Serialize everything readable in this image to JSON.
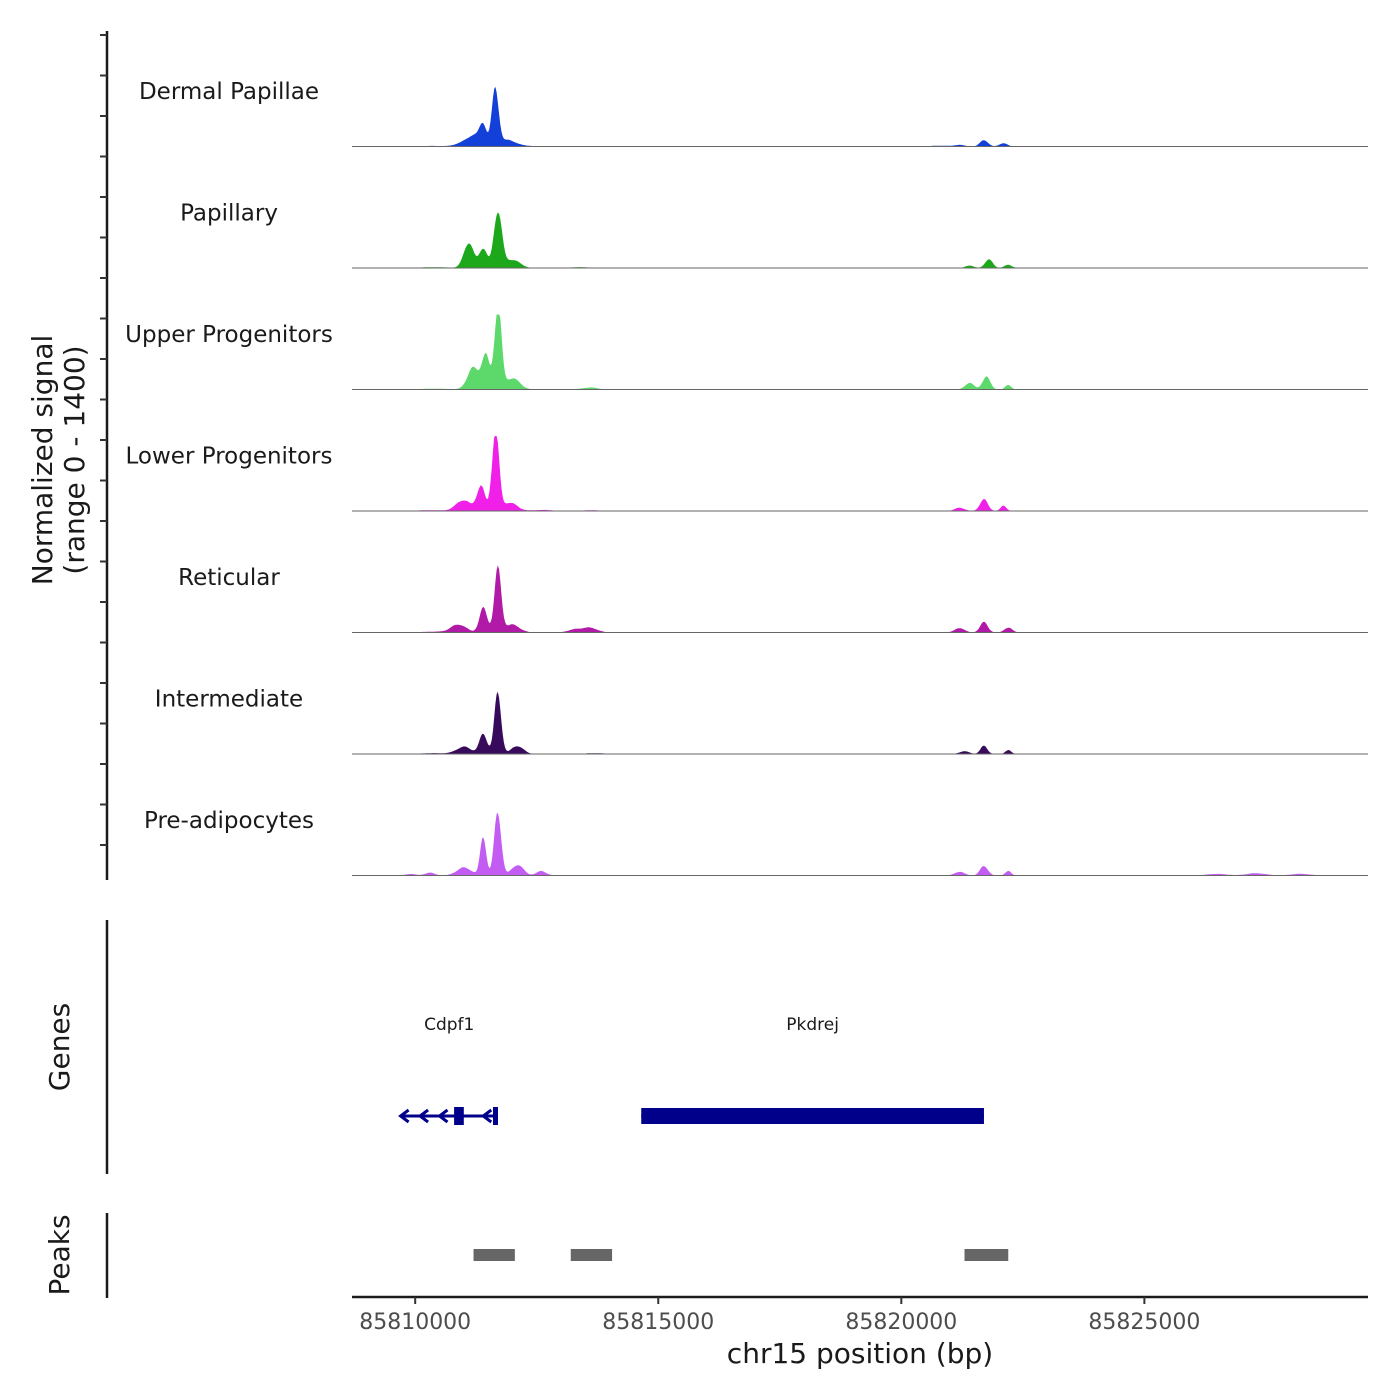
{
  "chart_data": {
    "type": "area",
    "title": "",
    "ylabel_line1": "Normalized signal",
    "ylabel_line2": "(range 0 - 1400)",
    "ylim": [
      0,
      1400
    ],
    "xlabel": "chr15 position (bp)",
    "xlim": [
      85808700,
      85829600
    ],
    "xticks": [
      85810000,
      85815000,
      85820000,
      85825000
    ],
    "xtick_labels": [
      "85810000",
      "85815000",
      "85820000",
      "85825000"
    ],
    "tracks": [
      {
        "name": "Dermal Papillae",
        "color": "#1240d8",
        "peaks": [
          [
            85810400,
            10,
            300
          ],
          [
            85810900,
            40,
            120
          ],
          [
            85811200,
            200,
            150
          ],
          [
            85811400,
            350,
            70
          ],
          [
            85811650,
            1100,
            70
          ],
          [
            85811900,
            120,
            150
          ],
          [
            85812200,
            15,
            200
          ],
          [
            85813500,
            8,
            200
          ],
          [
            85820800,
            15,
            200
          ],
          [
            85821200,
            30,
            100
          ],
          [
            85821700,
            120,
            80
          ],
          [
            85822100,
            60,
            80
          ],
          [
            85823300,
            8,
            200
          ]
        ]
      },
      {
        "name": "Papillary",
        "color": "#1ca81a",
        "peaks": [
          [
            85810400,
            15,
            300
          ],
          [
            85811100,
            450,
            100
          ],
          [
            85811400,
            380,
            80
          ],
          [
            85811700,
            1150,
            80
          ],
          [
            85812000,
            150,
            150
          ],
          [
            85813400,
            15,
            200
          ],
          [
            85821400,
            50,
            80
          ],
          [
            85821800,
            150,
            80
          ],
          [
            85822200,
            60,
            80
          ],
          [
            85827000,
            8,
            200
          ]
        ]
      },
      {
        "name": "Upper Progenitors",
        "color": "#5cd96a",
        "peaks": [
          [
            85810400,
            15,
            300
          ],
          [
            85811200,
            400,
            120
          ],
          [
            85811450,
            650,
            80
          ],
          [
            85811700,
            1600,
            70
          ],
          [
            85812000,
            200,
            150
          ],
          [
            85813600,
            40,
            150
          ],
          [
            85821400,
            120,
            90
          ],
          [
            85821750,
            230,
            80
          ],
          [
            85822200,
            90,
            60
          ]
        ]
      },
      {
        "name": "Lower Progenitors",
        "color": "#f020e8",
        "peaks": [
          [
            85810300,
            15,
            300
          ],
          [
            85811000,
            200,
            150
          ],
          [
            85811350,
            500,
            80
          ],
          [
            85811650,
            1500,
            70
          ],
          [
            85811950,
            150,
            150
          ],
          [
            85812600,
            20,
            200
          ],
          [
            85813600,
            15,
            200
          ],
          [
            85821200,
            60,
            100
          ],
          [
            85821700,
            220,
            80
          ],
          [
            85822100,
            100,
            60
          ],
          [
            85825000,
            5,
            300
          ]
        ]
      },
      {
        "name": "Reticular",
        "color": "#b01aa6",
        "peaks": [
          [
            85810400,
            15,
            300
          ],
          [
            85810900,
            150,
            150
          ],
          [
            85811400,
            450,
            80
          ],
          [
            85811700,
            1100,
            70
          ],
          [
            85812000,
            150,
            150
          ],
          [
            85813300,
            60,
            150
          ],
          [
            85813600,
            80,
            150
          ],
          [
            85821200,
            80,
            100
          ],
          [
            85821700,
            200,
            80
          ],
          [
            85822200,
            90,
            80
          ]
        ]
      },
      {
        "name": "Intermediate",
        "color": "#380a5c",
        "peaks": [
          [
            85810400,
            15,
            300
          ],
          [
            85811000,
            140,
            150
          ],
          [
            85811400,
            350,
            80
          ],
          [
            85811700,
            1100,
            70
          ],
          [
            85812100,
            160,
            120
          ],
          [
            85813700,
            15,
            200
          ],
          [
            85821300,
            50,
            100
          ],
          [
            85821700,
            160,
            70
          ],
          [
            85822200,
            70,
            60
          ]
        ]
      },
      {
        "name": "Pre-adipocytes",
        "color": "#c35cf2",
        "peaks": [
          [
            85809900,
            30,
            100
          ],
          [
            85810300,
            50,
            100
          ],
          [
            85811000,
            150,
            150
          ],
          [
            85811400,
            700,
            60
          ],
          [
            85811700,
            1250,
            70
          ],
          [
            85812100,
            200,
            120
          ],
          [
            85812600,
            80,
            100
          ],
          [
            85821200,
            70,
            100
          ],
          [
            85821700,
            180,
            80
          ],
          [
            85822200,
            80,
            60
          ],
          [
            85826500,
            30,
            200
          ],
          [
            85827300,
            40,
            200
          ],
          [
            85828200,
            30,
            200
          ]
        ]
      }
    ],
    "genes_label": "Genes",
    "genes": [
      {
        "name": "Cdpf1",
        "strand": "-",
        "start": 85809700,
        "end": 85811700,
        "exons": [
          [
            85810800,
            85811000
          ],
          [
            85811600,
            85811700
          ]
        ],
        "color": "#00008b"
      },
      {
        "name": "Pkdrej",
        "strand": "+",
        "start": 85814650,
        "end": 85821700,
        "exons": [
          [
            85814650,
            85821700
          ]
        ],
        "color": "#00008b"
      }
    ],
    "peaks_label": "Peaks",
    "peak_regions": [
      [
        85811200,
        85812050
      ],
      [
        85813200,
        85814050
      ],
      [
        85821300,
        85822200
      ]
    ],
    "peak_color": "#666666"
  }
}
